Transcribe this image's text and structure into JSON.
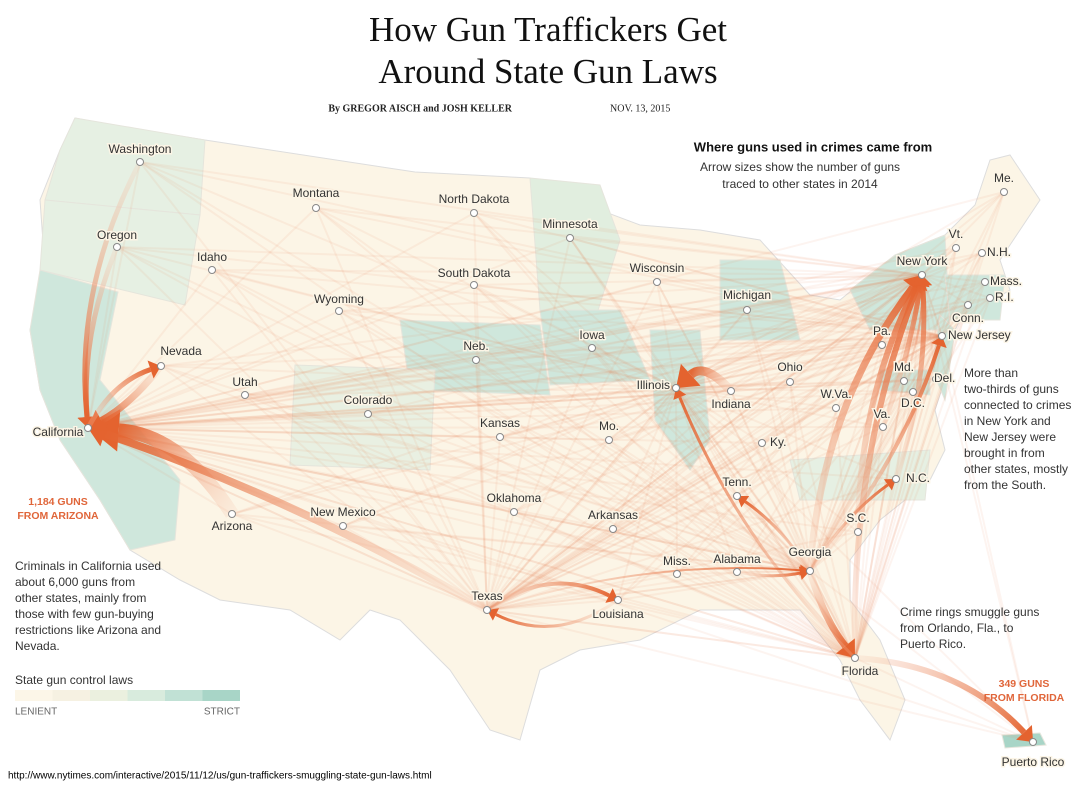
{
  "header": {
    "title": [
      "How Gun Traffickers Get",
      "Around State Gun Laws"
    ],
    "byline": "By GREGOR AISCH and JOSH KELLER",
    "date": "NOV. 13, 2015"
  },
  "key": {
    "title": "Where guns used in crimes came from",
    "note": [
      "Arrow sizes show the number of guns",
      "traced to other states in 2014"
    ]
  },
  "states": [
    "Washington",
    "Oregon",
    "Montana",
    "North Dakota",
    "Minnesota",
    "Idaho",
    "Wyoming",
    "South Dakota",
    "Wisconsin",
    "Michigan",
    "New York",
    "Me.",
    "Vt.",
    "N.H.",
    "Mass.",
    "R.I.",
    "Conn.",
    "New Jersey",
    "Pa.",
    "Nevada",
    "Iowa",
    "Neb.",
    "Utah",
    "Colorado",
    "Illinois",
    "Indiana",
    "Ohio",
    "W.Va.",
    "Md.",
    "Del.",
    "D.C.",
    "Va.",
    "Kansas",
    "Mo.",
    "Ky.",
    "California",
    "Tenn.",
    "N.C.",
    "Oklahoma",
    "Arkansas",
    "S.C.",
    "New Mexico",
    "Arizona",
    "Georgia",
    "Alabama",
    "Miss.",
    "Texas",
    "Louisiana",
    "Florida",
    "Puerto Rico"
  ],
  "annotations": {
    "arizona": [
      "1,184 GUNS",
      "FROM ARIZONA"
    ],
    "california": [
      "Criminals in California used",
      "about 6,000 guns from",
      "other states, mainly from",
      "those with few gun-buying",
      "restrictions like Arizona and",
      "Nevada."
    ],
    "northeast": [
      "More than",
      "two-thirds of guns",
      "connected to crimes",
      "in New York and",
      "New Jersey were",
      "brought in from",
      "other states, mostly",
      "from the South."
    ],
    "florida": [
      "Crime rings smuggle guns",
      "from Orlando, Fla., to",
      "Puerto Rico."
    ],
    "puerto_rico": [
      "349 GUNS",
      "FROM FLORIDA"
    ]
  },
  "legend": {
    "title": "State gun control laws",
    "low": "LENIENT",
    "high": "STRICT"
  },
  "url": "http://www.nytimes.com/interactive/2015/11/12/us/gun-traffickers-smuggling-state-gun-laws.html"
}
